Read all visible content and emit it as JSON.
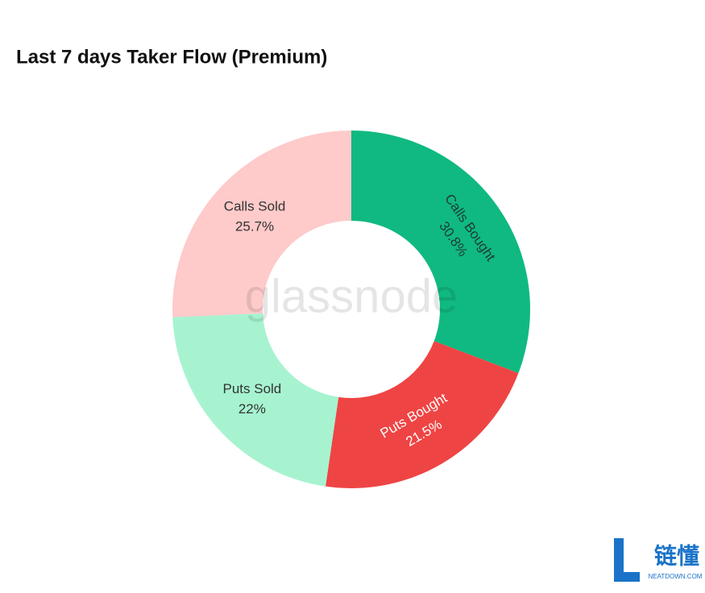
{
  "chart_data": {
    "type": "donut",
    "title": "Last 7 days Taker Flow (Premium)",
    "categories": [
      "Calls Bought",
      "Puts Bought",
      "Puts Sold",
      "Calls Sold"
    ],
    "values": [
      30.8,
      21.5,
      22,
      25.7
    ],
    "value_labels": [
      "30.8%",
      "21.5%",
      "22%",
      "25.7%"
    ],
    "colors": [
      "#10b981",
      "#ef4444",
      "#a7f3d0",
      "#fecaca"
    ],
    "label_colors": [
      "#1f3b33",
      "#ffffff",
      "#333333",
      "#333333"
    ]
  },
  "watermark": "glassnode",
  "logo": {
    "text": "链懂",
    "subtext": "NEATDOWN.COM"
  }
}
